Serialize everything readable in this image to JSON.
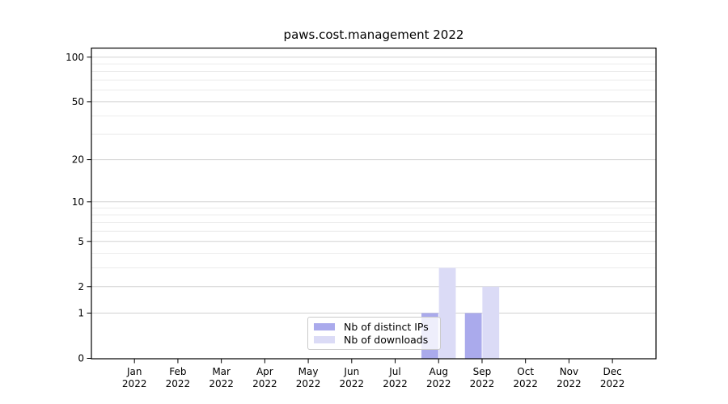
{
  "figure": {
    "title": "paws.cost.management 2022"
  },
  "chart_data": {
    "type": "bar",
    "title": "paws.cost.management 2022",
    "yscale": "log1p",
    "ylim": [
      0,
      116
    ],
    "grid": true,
    "legend_position": "lower-center-inside",
    "categories": [
      "Jan",
      "Feb",
      "Mar",
      "Apr",
      "May",
      "Jun",
      "Jul",
      "Aug",
      "Sep",
      "Oct",
      "Nov",
      "Dec"
    ],
    "category_year_label": "2022",
    "series": [
      {
        "name": "Nb of distinct IPs",
        "color": "#aaaaec",
        "values": [
          0,
          0,
          0,
          0,
          0,
          0,
          0,
          1,
          1,
          0,
          0,
          0
        ]
      },
      {
        "name": "Nb of downloads",
        "color": "#dbdbf6",
        "values": [
          0,
          0,
          0,
          0,
          0,
          0,
          0,
          3,
          2,
          0,
          0,
          0
        ]
      }
    ],
    "yaxis": {
      "major_ticks": [
        0,
        1,
        2,
        5,
        10,
        20,
        50,
        100
      ],
      "minor_ticks": [
        3,
        4,
        6,
        7,
        8,
        9,
        30,
        40,
        60,
        70,
        80,
        90
      ]
    },
    "colors": {
      "grid_major": "#d2d2d2",
      "grid_minor": "#ececec",
      "spine": "#000000",
      "text": "#000000",
      "legend_border": "#cbcbcb"
    }
  }
}
